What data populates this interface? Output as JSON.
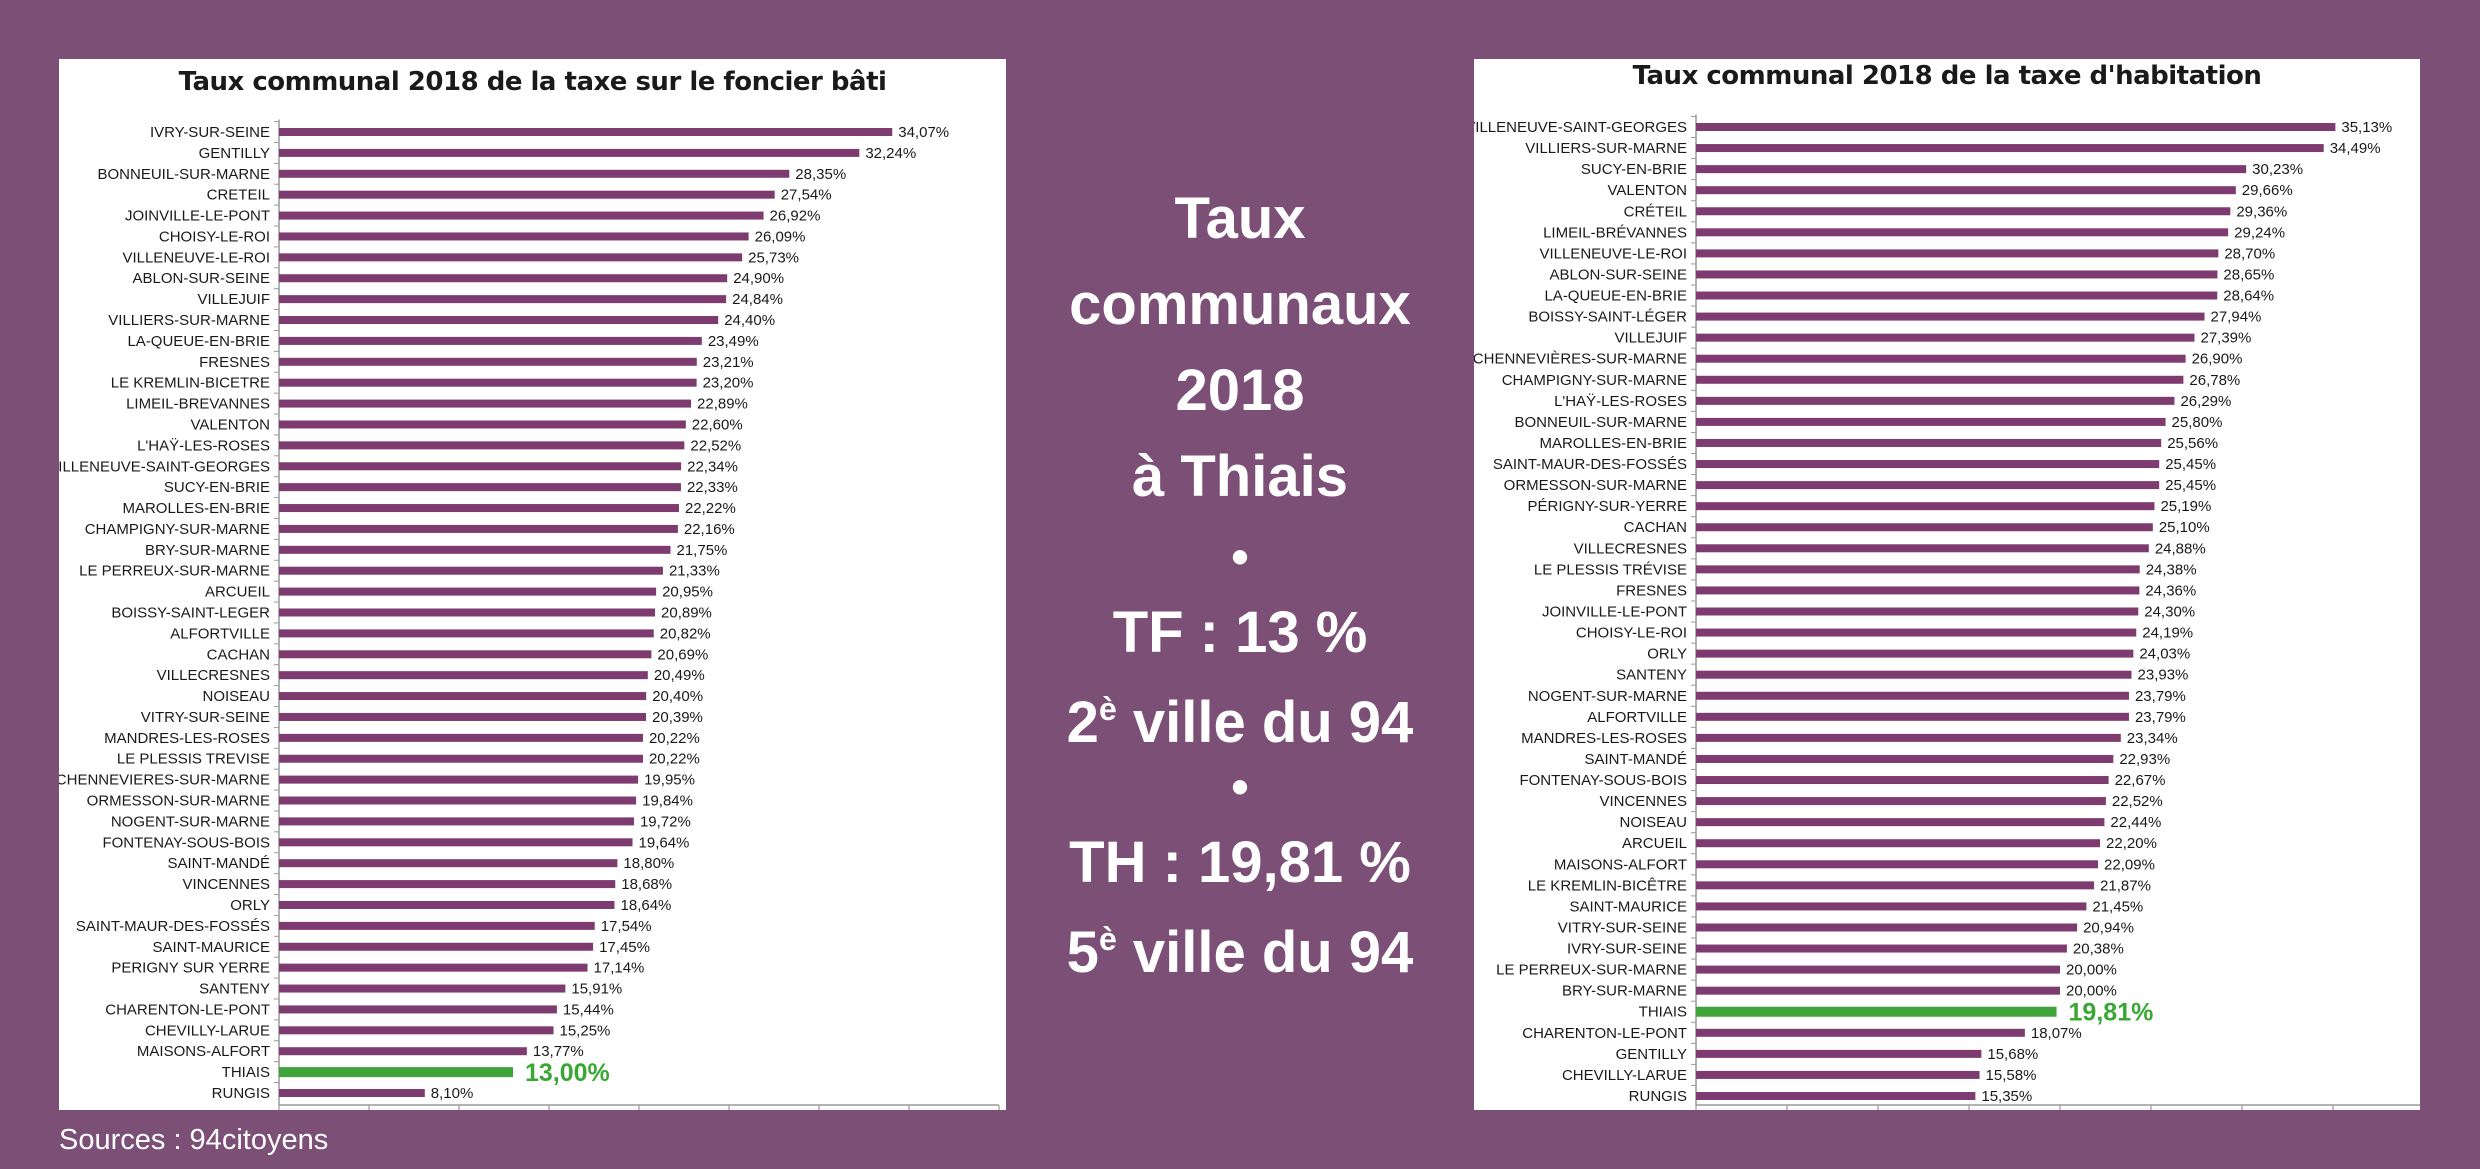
{
  "center": {
    "line1": "Taux",
    "line2": "communaux",
    "line3": "2018",
    "line4": "à Thiais",
    "bullet": "•",
    "tf": "TF : 13 %",
    "tf_rank_num": "2",
    "tf_rank_sup": "è",
    "tf_rank_rest": " ville du 94",
    "th": "TH : 19,81 %",
    "th_rank_num": "5",
    "th_rank_sup": "è",
    "th_rank_rest": " ville du 94"
  },
  "sources": "Sources : 94citoyens",
  "colors": {
    "background": "#7b4f76",
    "bar": "#7d3b6f",
    "highlight": "#3fa53a",
    "highlight_text": "#38a833"
  },
  "chart_data": [
    {
      "type": "bar",
      "orientation": "horizontal",
      "title": "Taux communal 2018 de la taxe sur le foncier bâti",
      "highlight": "THIAIS",
      "grid": false,
      "xlim": [
        0,
        40
      ],
      "categories": [
        "IVRY-SUR-SEINE",
        "GENTILLY",
        "BONNEUIL-SUR-MARNE",
        "CRETEIL",
        "JOINVILLE-LE-PONT",
        "CHOISY-LE-ROI",
        "VILLENEUVE-LE-ROI",
        "ABLON-SUR-SEINE",
        "VILLEJUIF",
        "VILLIERS-SUR-MARNE",
        "LA-QUEUE-EN-BRIE",
        "FRESNES",
        "LE KREMLIN-BICETRE",
        "LIMEIL-BREVANNES",
        "VALENTON",
        "L'HAŸ-LES-ROSES",
        "VILLENEUVE-SAINT-GEORGES",
        "SUCY-EN-BRIE",
        "MAROLLES-EN-BRIE",
        "CHAMPIGNY-SUR-MARNE",
        "BRY-SUR-MARNE",
        "LE PERREUX-SUR-MARNE",
        "ARCUEIL",
        "BOISSY-SAINT-LEGER",
        "ALFORTVILLE",
        "CACHAN",
        "VILLECRESNES",
        "NOISEAU",
        "VITRY-SUR-SEINE",
        "MANDRES-LES-ROSES",
        "LE PLESSIS TREVISE",
        "CHENNEVIERES-SUR-MARNE",
        "ORMESSON-SUR-MARNE",
        "NOGENT-SUR-MARNE",
        "FONTENAY-SOUS-BOIS",
        "SAINT-MANDÉ",
        "VINCENNES",
        "ORLY",
        "SAINT-MAUR-DES-FOSSÉS",
        "SAINT-MAURICE",
        "PERIGNY SUR YERRE",
        "SANTENY",
        "CHARENTON-LE-PONT",
        "CHEVILLY-LARUE",
        "MAISONS-ALFORT",
        "THIAIS",
        "RUNGIS"
      ],
      "values": [
        34.07,
        32.24,
        28.35,
        27.54,
        26.92,
        26.09,
        25.73,
        24.9,
        24.84,
        24.4,
        23.49,
        23.21,
        23.2,
        22.89,
        22.6,
        22.52,
        22.34,
        22.33,
        22.22,
        22.16,
        21.75,
        21.33,
        20.95,
        20.89,
        20.82,
        20.69,
        20.49,
        20.4,
        20.39,
        20.22,
        20.22,
        19.95,
        19.84,
        19.72,
        19.64,
        18.8,
        18.68,
        18.64,
        17.54,
        17.45,
        17.14,
        15.91,
        15.44,
        15.25,
        13.77,
        13.0,
        8.1
      ],
      "value_labels": [
        "34,07%",
        "32,24%",
        "28,35%",
        "27,54%",
        "26,92%",
        "26,09%",
        "25,73%",
        "24,90%",
        "24,84%",
        "24,40%",
        "23,49%",
        "23,21%",
        "23,20%",
        "22,89%",
        "22,60%",
        "22,52%",
        "22,34%",
        "22,33%",
        "22,22%",
        "22,16%",
        "21,75%",
        "21,33%",
        "20,95%",
        "20,89%",
        "20,82%",
        "20,69%",
        "20,49%",
        "20,40%",
        "20,39%",
        "20,22%",
        "20,22%",
        "19,95%",
        "19,84%",
        "19,72%",
        "19,64%",
        "18,80%",
        "18,68%",
        "18,64%",
        "17,54%",
        "17,45%",
        "17,14%",
        "15,91%",
        "15,44%",
        "15,25%",
        "13,77%",
        "13,00%",
        "8,10%"
      ]
    },
    {
      "type": "bar",
      "orientation": "horizontal",
      "title": "Taux communal 2018 de la taxe d'habitation",
      "highlight": "THIAIS",
      "grid": false,
      "xlim": [
        0,
        40
      ],
      "categories": [
        "VILLENEUVE-SAINT-GEORGES",
        "VILLIERS-SUR-MARNE",
        "SUCY-EN-BRIE",
        "VALENTON",
        "CRÉTEIL",
        "LIMEIL-BRÉVANNES",
        "VILLENEUVE-LE-ROI",
        "ABLON-SUR-SEINE",
        "LA-QUEUE-EN-BRIE",
        "BOISSY-SAINT-LÉGER",
        "VILLEJUIF",
        "CHENNEVIÈRES-SUR-MARNE",
        "CHAMPIGNY-SUR-MARNE",
        "L'HAŸ-LES-ROSES",
        "BONNEUIL-SUR-MARNE",
        "MAROLLES-EN-BRIE",
        "SAINT-MAUR-DES-FOSSÉS",
        "ORMESSON-SUR-MARNE",
        "PÉRIGNY-SUR-YERRE",
        "CACHAN",
        "VILLECRESNES",
        "LE PLESSIS TRÉVISE",
        "FRESNES",
        "JOINVILLE-LE-PONT",
        "CHOISY-LE-ROI",
        "ORLY",
        "SANTENY",
        "NOGENT-SUR-MARNE",
        "ALFORTVILLE",
        "MANDRES-LES-ROSES",
        "SAINT-MANDÉ",
        "FONTENAY-SOUS-BOIS",
        "VINCENNES",
        "NOISEAU",
        "ARCUEIL",
        "MAISONS-ALFORT",
        "LE KREMLIN-BICÊTRE",
        "SAINT-MAURICE",
        "VITRY-SUR-SEINE",
        "IVRY-SUR-SEINE",
        "LE PERREUX-SUR-MARNE",
        "BRY-SUR-MARNE",
        "THIAIS",
        "CHARENTON-LE-PONT",
        "GENTILLY",
        "CHEVILLY-LARUE",
        "RUNGIS"
      ],
      "values": [
        35.13,
        34.49,
        30.23,
        29.66,
        29.36,
        29.24,
        28.7,
        28.65,
        28.64,
        27.94,
        27.39,
        26.9,
        26.78,
        26.29,
        25.8,
        25.56,
        25.45,
        25.45,
        25.19,
        25.1,
        24.88,
        24.38,
        24.36,
        24.3,
        24.19,
        24.03,
        23.93,
        23.79,
        23.79,
        23.34,
        22.93,
        22.67,
        22.52,
        22.44,
        22.2,
        22.09,
        21.87,
        21.45,
        20.94,
        20.38,
        20.0,
        20.0,
        19.81,
        18.07,
        15.68,
        15.58,
        15.35
      ],
      "value_labels": [
        "35,13%",
        "34,49%",
        "30,23%",
        "29,66%",
        "29,36%",
        "29,24%",
        "28,70%",
        "28,65%",
        "28,64%",
        "27,94%",
        "27,39%",
        "26,90%",
        "26,78%",
        "26,29%",
        "25,80%",
        "25,56%",
        "25,45%",
        "25,45%",
        "25,19%",
        "25,10%",
        "24,88%",
        "24,38%",
        "24,36%",
        "24,30%",
        "24,19%",
        "24,03%",
        "23,93%",
        "23,79%",
        "23,79%",
        "23,34%",
        "22,93%",
        "22,67%",
        "22,52%",
        "22,44%",
        "22,20%",
        "22,09%",
        "21,87%",
        "21,45%",
        "20,94%",
        "20,38%",
        "20,00%",
        "20,00%",
        "19,81%",
        "18,07%",
        "15,68%",
        "15,58%",
        "15,35%"
      ]
    }
  ]
}
